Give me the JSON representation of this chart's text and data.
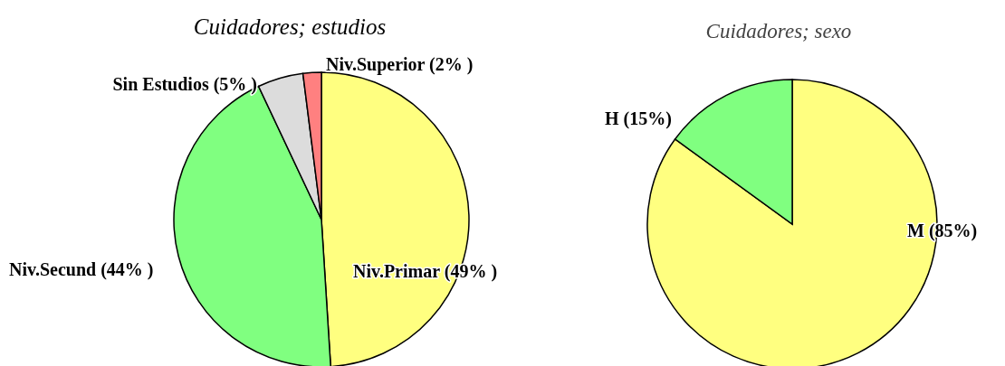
{
  "chart_data": [
    {
      "type": "pie",
      "title": "Cuidadores; estudios",
      "categories": [
        "Niv.Primar (49% )",
        "Niv.Secund (44% )",
        "Sin Estudios (5% )",
        "Niv.Superior (2% )"
      ],
      "values": [
        49,
        44,
        5,
        2
      ],
      "colors": [
        "#ffff80",
        "#80ff80",
        "#dcdcdc",
        "#ff8080"
      ]
    },
    {
      "type": "pie",
      "title": "Cuidadores; sexo",
      "categories": [
        "M (85%)",
        "H (15%)"
      ],
      "values": [
        85,
        15
      ],
      "colors": [
        "#ffff80",
        "#80ff80"
      ]
    }
  ]
}
